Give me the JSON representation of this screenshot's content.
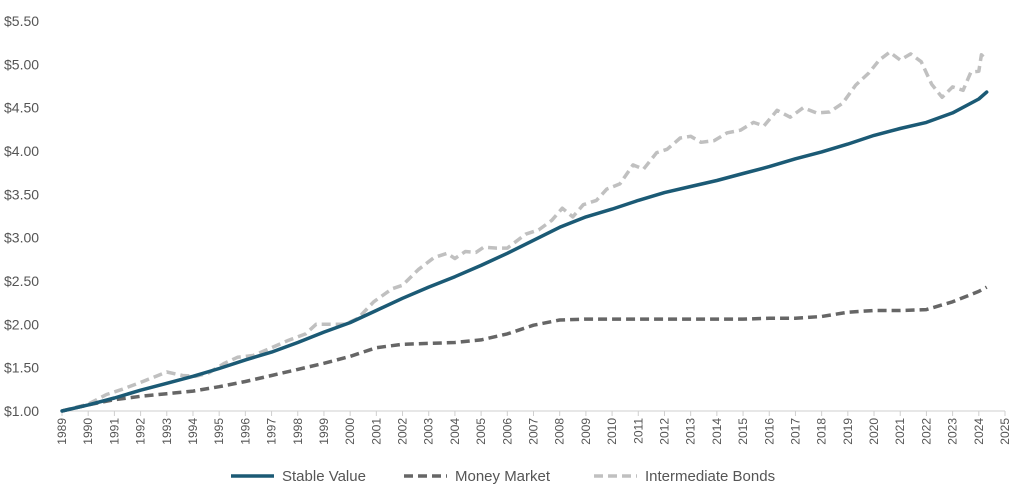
{
  "chart_data": {
    "type": "line",
    "title": "",
    "xlabel": "",
    "ylabel": "",
    "xlim": [
      1989,
      2025
    ],
    "ylim": [
      1.0,
      5.5
    ],
    "x_ticks": [
      "1989",
      "1990",
      "1991",
      "1992",
      "1993",
      "1994",
      "1995",
      "1996",
      "1997",
      "1998",
      "1999",
      "2000",
      "2001",
      "2002",
      "2003",
      "2004",
      "2005",
      "2006",
      "2007",
      "2008",
      "2009",
      "2010",
      "2011",
      "2012",
      "2013",
      "2014",
      "2015",
      "2016",
      "2017",
      "2018",
      "2019",
      "2020",
      "2021",
      "2022",
      "2023",
      "2024",
      "2025"
    ],
    "y_ticks": [
      {
        "value": 1.0,
        "label": "$1.00"
      },
      {
        "value": 1.5,
        "label": "$1.50"
      },
      {
        "value": 2.0,
        "label": "$2.00"
      },
      {
        "value": 2.5,
        "label": "$2.50"
      },
      {
        "value": 3.0,
        "label": "$3.00"
      },
      {
        "value": 3.5,
        "label": "$3.50"
      },
      {
        "value": 4.0,
        "label": "$4.00"
      },
      {
        "value": 4.5,
        "label": "$4.50"
      },
      {
        "value": 5.0,
        "label": "$5.00"
      },
      {
        "value": 5.5,
        "label": "$5.50"
      }
    ],
    "grid": false,
    "legend_position": "bottom",
    "series": [
      {
        "name": "Stable Value",
        "color": "#1b5a75",
        "style": "solid",
        "points": [
          [
            1989.0,
            1.0
          ],
          [
            1990.0,
            1.07
          ],
          [
            1991.0,
            1.15
          ],
          [
            1992.0,
            1.24
          ],
          [
            1993.0,
            1.32
          ],
          [
            1994.0,
            1.4
          ],
          [
            1995.0,
            1.49
          ],
          [
            1996.0,
            1.59
          ],
          [
            1997.0,
            1.68
          ],
          [
            1998.0,
            1.79
          ],
          [
            1999.0,
            1.91
          ],
          [
            2000.0,
            2.02
          ],
          [
            2001.0,
            2.16
          ],
          [
            2002.0,
            2.3
          ],
          [
            2003.0,
            2.43
          ],
          [
            2004.0,
            2.55
          ],
          [
            2005.0,
            2.68
          ],
          [
            2006.0,
            2.82
          ],
          [
            2007.0,
            2.97
          ],
          [
            2008.0,
            3.12
          ],
          [
            2009.0,
            3.24
          ],
          [
            2010.0,
            3.33
          ],
          [
            2011.0,
            3.43
          ],
          [
            2012.0,
            3.52
          ],
          [
            2013.0,
            3.59
          ],
          [
            2014.0,
            3.66
          ],
          [
            2015.0,
            3.74
          ],
          [
            2016.0,
            3.82
          ],
          [
            2017.0,
            3.91
          ],
          [
            2018.0,
            3.99
          ],
          [
            2019.0,
            4.08
          ],
          [
            2020.0,
            4.18
          ],
          [
            2021.0,
            4.26
          ],
          [
            2022.0,
            4.33
          ],
          [
            2023.0,
            4.44
          ],
          [
            2024.0,
            4.6
          ],
          [
            2024.3,
            4.68
          ]
        ]
      },
      {
        "name": "Money Market",
        "color": "#666666",
        "style": "dashed",
        "points": [
          [
            1989.0,
            1.0
          ],
          [
            1990.0,
            1.07
          ],
          [
            1991.0,
            1.13
          ],
          [
            1992.0,
            1.17
          ],
          [
            1993.0,
            1.2
          ],
          [
            1994.0,
            1.23
          ],
          [
            1995.0,
            1.28
          ],
          [
            1996.0,
            1.34
          ],
          [
            1997.0,
            1.41
          ],
          [
            1998.0,
            1.48
          ],
          [
            1999.0,
            1.55
          ],
          [
            2000.0,
            1.63
          ],
          [
            2001.0,
            1.73
          ],
          [
            2002.0,
            1.77
          ],
          [
            2003.0,
            1.78
          ],
          [
            2004.0,
            1.79
          ],
          [
            2005.0,
            1.82
          ],
          [
            2006.0,
            1.89
          ],
          [
            2007.0,
            1.99
          ],
          [
            2008.0,
            2.05
          ],
          [
            2009.0,
            2.06
          ],
          [
            2010.0,
            2.06
          ],
          [
            2011.0,
            2.06
          ],
          [
            2012.0,
            2.06
          ],
          [
            2013.0,
            2.06
          ],
          [
            2014.0,
            2.06
          ],
          [
            2015.0,
            2.06
          ],
          [
            2016.0,
            2.07
          ],
          [
            2017.0,
            2.07
          ],
          [
            2018.0,
            2.09
          ],
          [
            2019.0,
            2.14
          ],
          [
            2020.0,
            2.16
          ],
          [
            2021.0,
            2.16
          ],
          [
            2022.0,
            2.17
          ],
          [
            2023.0,
            2.26
          ],
          [
            2024.0,
            2.38
          ],
          [
            2024.3,
            2.43
          ]
        ]
      },
      {
        "name": "Intermediate Bonds",
        "color": "#c0c0c0",
        "style": "dashed",
        "points": [
          [
            1989.0,
            1.0
          ],
          [
            1990.0,
            1.08
          ],
          [
            1990.7,
            1.19
          ],
          [
            1991.3,
            1.25
          ],
          [
            1992.0,
            1.33
          ],
          [
            1992.5,
            1.39
          ],
          [
            1993.0,
            1.45
          ],
          [
            1993.6,
            1.41
          ],
          [
            1994.1,
            1.4
          ],
          [
            1994.6,
            1.44
          ],
          [
            1995.2,
            1.55
          ],
          [
            1995.7,
            1.62
          ],
          [
            1996.3,
            1.64
          ],
          [
            1997.0,
            1.73
          ],
          [
            1997.6,
            1.81
          ],
          [
            1998.3,
            1.89
          ],
          [
            1998.7,
            2.0
          ],
          [
            1999.3,
            2.0
          ],
          [
            1999.8,
            2.0
          ],
          [
            2000.3,
            2.07
          ],
          [
            2000.9,
            2.26
          ],
          [
            2001.6,
            2.41
          ],
          [
            2002.0,
            2.45
          ],
          [
            2002.6,
            2.63
          ],
          [
            2003.2,
            2.77
          ],
          [
            2003.7,
            2.82
          ],
          [
            2004.0,
            2.76
          ],
          [
            2004.4,
            2.84
          ],
          [
            2004.8,
            2.83
          ],
          [
            2005.1,
            2.89
          ],
          [
            2005.6,
            2.88
          ],
          [
            2006.0,
            2.88
          ],
          [
            2006.7,
            3.04
          ],
          [
            2007.2,
            3.09
          ],
          [
            2007.7,
            3.2
          ],
          [
            2008.1,
            3.34
          ],
          [
            2008.5,
            3.24
          ],
          [
            2008.9,
            3.38
          ],
          [
            2009.4,
            3.43
          ],
          [
            2009.8,
            3.56
          ],
          [
            2010.3,
            3.62
          ],
          [
            2010.8,
            3.84
          ],
          [
            2011.2,
            3.79
          ],
          [
            2011.7,
            3.98
          ],
          [
            2012.1,
            4.02
          ],
          [
            2012.6,
            4.15
          ],
          [
            2013.0,
            4.17
          ],
          [
            2013.4,
            4.1
          ],
          [
            2013.9,
            4.12
          ],
          [
            2014.4,
            4.21
          ],
          [
            2014.9,
            4.24
          ],
          [
            2015.4,
            4.33
          ],
          [
            2015.8,
            4.29
          ],
          [
            2016.3,
            4.47
          ],
          [
            2016.8,
            4.39
          ],
          [
            2017.3,
            4.5
          ],
          [
            2017.8,
            4.44
          ],
          [
            2018.3,
            4.45
          ],
          [
            2018.8,
            4.55
          ],
          [
            2019.3,
            4.76
          ],
          [
            2019.8,
            4.9
          ],
          [
            2020.2,
            5.05
          ],
          [
            2020.6,
            5.14
          ],
          [
            2021.0,
            5.05
          ],
          [
            2021.4,
            5.12
          ],
          [
            2021.8,
            5.03
          ],
          [
            2022.2,
            4.77
          ],
          [
            2022.6,
            4.62
          ],
          [
            2023.0,
            4.74
          ],
          [
            2023.4,
            4.7
          ],
          [
            2023.7,
            4.91
          ],
          [
            2024.0,
            4.92
          ],
          [
            2024.1,
            5.11
          ],
          [
            2024.3,
            5.05
          ]
        ]
      }
    ]
  }
}
